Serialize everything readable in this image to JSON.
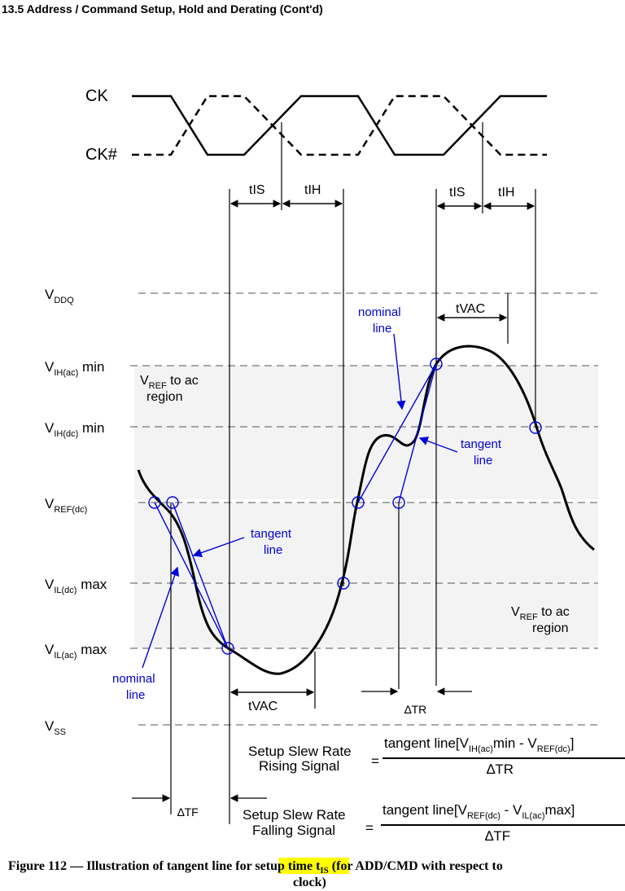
{
  "header": "13.5  Address / Command Setup, Hold and Derating (Cont'd)",
  "signals": [
    "CK",
    "CK#"
  ],
  "timing": [
    "tIS",
    "tIH",
    "tIS",
    "tIH",
    "tVAC",
    "tVAC"
  ],
  "levels": [
    {
      "v": "V",
      "sub": "DDQ"
    },
    {
      "v": "V",
      "sub": "IH(ac)",
      "suffix": " min"
    },
    {
      "v": "V",
      "sub": "IH(dc)",
      "suffix": " min"
    },
    {
      "v": "V",
      "sub": "REF(dc)"
    },
    {
      "v": "V",
      "sub": "IL(dc)",
      "suffix": " max"
    },
    {
      "v": "V",
      "sub": "IL(ac)",
      "suffix": " max"
    },
    {
      "v": "V",
      "sub": "SS"
    }
  ],
  "regions": [
    {
      "v": "V",
      "sub": "REF",
      "suffix": " to ac",
      "line2": "region"
    },
    {
      "v": "V",
      "sub": "REF",
      "suffix": " to ac",
      "line2": "region"
    }
  ],
  "notes": [
    {
      "l1": "nominal",
      "l2": "line"
    },
    {
      "l1": "tangent",
      "l2": "line"
    },
    {
      "l1": "tangent",
      "l2": "line"
    },
    {
      "l1": "nominal",
      "l2": "line"
    }
  ],
  "deltas": [
    "∆TR",
    "∆TF"
  ],
  "formulas": [
    {
      "l1": "Setup Slew Rate",
      "l2": "Rising Signal",
      "eq": "=",
      "n1": "tangent line[V",
      "n2": "IH(ac)",
      "n3": "min - V",
      "n4": "REF(dc)",
      "n5": "]",
      "den": "∆TR"
    },
    {
      "l1": "Setup Slew Rate",
      "l2": "Falling Signal",
      "eq": "=",
      "n1": "tangent line[V",
      "n2": "REF(dc)",
      "n3": " - V",
      "n4": "IL(ac)",
      "n5": "max]",
      "den": "∆TF"
    }
  ],
  "caption": {
    "a": "Figure 112 — Illustration of tangent line for ",
    "hl": "setup time",
    "b": " t",
    "sub": "IS",
    "c": " (for ADD/CMD with respect to",
    "line2": "clock)"
  }
}
